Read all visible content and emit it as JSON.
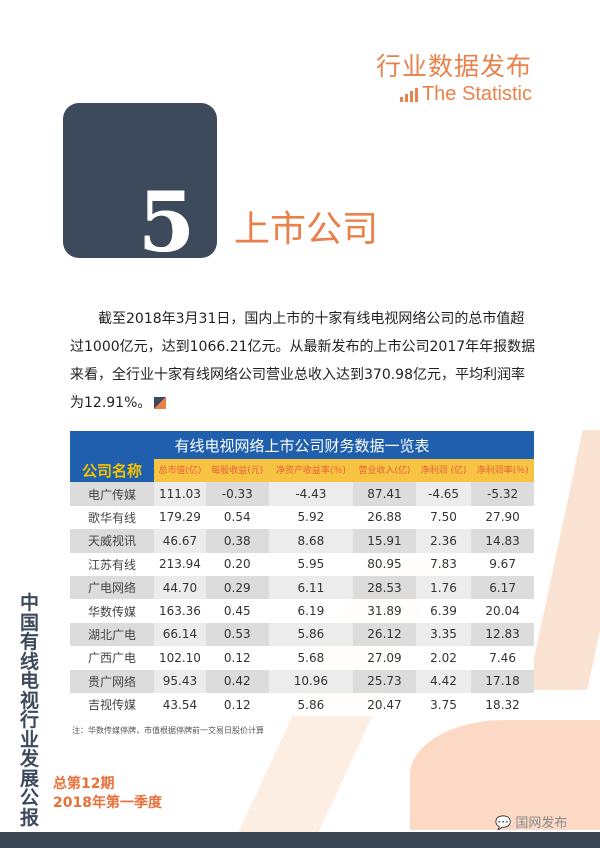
{
  "header": {
    "title_zh": "行业数据发布",
    "title_en": "The Statistic",
    "icon": "bar-chart-icon"
  },
  "section": {
    "number": "5",
    "title": "上市公司"
  },
  "paragraph": "截至2018年3月31日，国内上市的十家有线电视网络公司的总市值超过1000亿元，达到1066.21亿元。从最新发布的上市公司2017年年报数据来看，全行业十家有线网络公司营业总收入达到370.98亿元，平均利润率为12.91%。",
  "table": {
    "caption": "有线电视网络上市公司财务数据一览表",
    "headers": [
      "公司名称",
      "总市值(亿)",
      "每股收益(元)",
      "净资产收益率(％)",
      "营业收入(亿)",
      "净利润 (亿)",
      "净利润率(％)"
    ],
    "rows": [
      [
        "电广传媒",
        "111.03",
        "-0.33",
        "-4.43",
        "87.41",
        "-4.65",
        "-5.32"
      ],
      [
        "歌华有线",
        "179.29",
        "0.54",
        "5.92",
        "26.88",
        "7.50",
        "27.90"
      ],
      [
        "天威视讯",
        "46.67",
        "0.38",
        "8.68",
        "15.91",
        "2.36",
        "14.83"
      ],
      [
        "江苏有线",
        "213.94",
        "0.20",
        "5.95",
        "80.95",
        "7.83",
        "9.67"
      ],
      [
        "广电网络",
        "44.70",
        "0.29",
        "6.11",
        "28.53",
        "1.76",
        "6.17"
      ],
      [
        "华数传媒",
        "163.36",
        "0.45",
        "6.19",
        "31.89",
        "6.39",
        "20.04"
      ],
      [
        "湖北广电",
        "66.14",
        "0.53",
        "5.86",
        "26.12",
        "3.35",
        "12.83"
      ],
      [
        "广西广电",
        "102.10",
        "0.12",
        "5.68",
        "27.09",
        "2.02",
        "7.46"
      ],
      [
        "贵广网络",
        "95.43",
        "0.42",
        "10.96",
        "25.73",
        "4.42",
        "17.18"
      ],
      [
        "吉视传媒",
        "43.54",
        "0.12",
        "5.86",
        "20.47",
        "3.75",
        "18.32"
      ]
    ],
    "note": "注：华数传媒停牌，市值根据停牌前一交易日股价计算"
  },
  "sidebar_title": "中国有线电视行业发展公报",
  "issue": {
    "number": "总第12期",
    "period": "2018年第一季度"
  },
  "watermark": {
    "text": "国网发布",
    "icon": "wechat-icon"
  },
  "colors": {
    "accent": "#e8824a",
    "dark": "#3d4a5c",
    "table_blue": "#1f5fae",
    "table_yellow": "#f6c343"
  }
}
